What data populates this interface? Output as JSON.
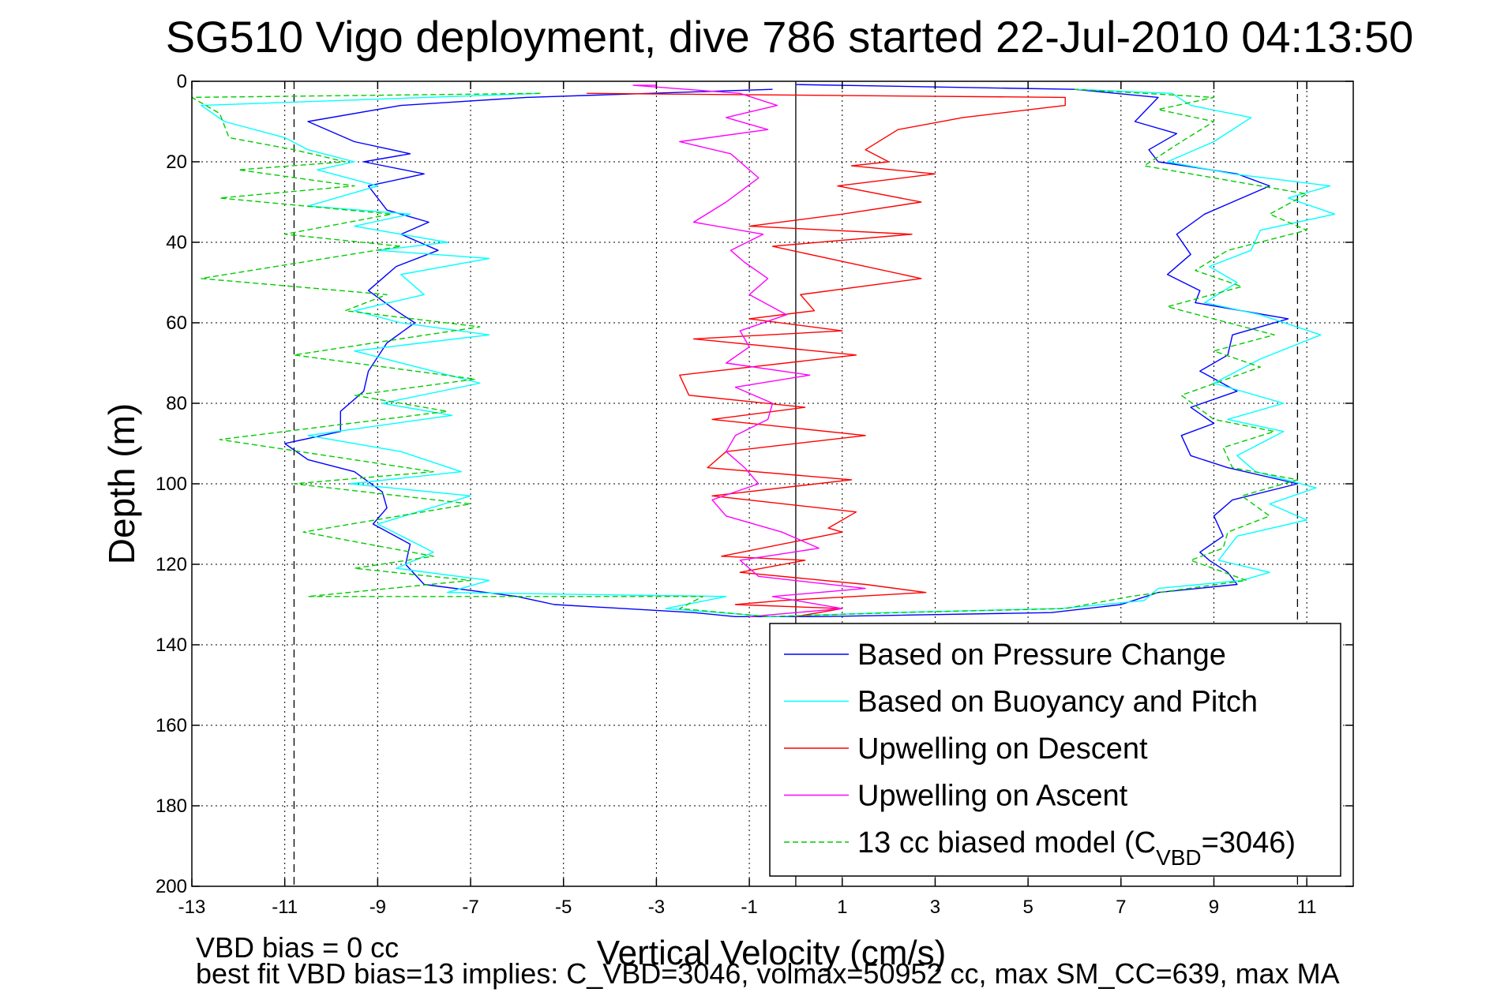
{
  "chart_data": {
    "type": "line",
    "title": "SG510 Vigo deployment, dive 786 started 22-Jul-2010 04:13:50",
    "xlabel": "Vertical Velocity (cm/s)",
    "ylabel": "Depth (m)",
    "xlim": [
      -13,
      12
    ],
    "ylim": [
      0,
      200
    ],
    "y_reversed": true,
    "grid": true,
    "xticks": [
      "-13",
      "-11",
      "-9",
      "-7",
      "-5",
      "-3",
      "-1",
      "1",
      "3",
      "5",
      "7",
      "9",
      "11"
    ],
    "yticks": [
      "0",
      "20",
      "40",
      "60",
      "80",
      "100",
      "120",
      "140",
      "160",
      "180",
      "200"
    ],
    "legend_position": "bottom-right",
    "vlines": [
      {
        "x": -10.8,
        "style": "dashed"
      },
      {
        "x": 10.8,
        "style": "dashed"
      },
      {
        "x": 0,
        "style": "solid"
      }
    ],
    "series": [
      {
        "name": "Based on Pressure Change",
        "color": "#0000ff",
        "style": "solid",
        "points": [
          [
            -0.5,
            2
          ],
          [
            -5.8,
            4
          ],
          [
            -8.5,
            6
          ],
          [
            -10.5,
            10
          ],
          [
            -9.5,
            15
          ],
          [
            -8.3,
            18
          ],
          [
            -9.3,
            20
          ],
          [
            -8.0,
            23
          ],
          [
            -9.2,
            26
          ],
          [
            -8.8,
            32
          ],
          [
            -7.9,
            35
          ],
          [
            -8.5,
            38
          ],
          [
            -7.7,
            42
          ],
          [
            -8.6,
            46
          ],
          [
            -8.8,
            48
          ],
          [
            -9.2,
            52
          ],
          [
            -8.6,
            57
          ],
          [
            -8.2,
            60
          ],
          [
            -8.8,
            65
          ],
          [
            -9.2,
            72
          ],
          [
            -9.3,
            77
          ],
          [
            -9.8,
            82
          ],
          [
            -9.8,
            87
          ],
          [
            -11.0,
            90
          ],
          [
            -10.5,
            94
          ],
          [
            -9.5,
            97
          ],
          [
            -8.9,
            102
          ],
          [
            -8.8,
            106
          ],
          [
            -9.1,
            110
          ],
          [
            -8.3,
            115
          ],
          [
            -8.4,
            120
          ],
          [
            -8.0,
            125
          ],
          [
            -6.0,
            128
          ],
          [
            -5.2,
            130
          ],
          [
            -2.2,
            132
          ],
          [
            -1.3,
            133
          ],
          [
            0.5,
            133
          ],
          [
            5.5,
            132
          ],
          [
            7.0,
            130
          ],
          [
            7.8,
            127
          ],
          [
            9.5,
            125
          ],
          [
            9.3,
            122
          ],
          [
            8.9,
            119
          ],
          [
            8.7,
            117
          ],
          [
            9.2,
            113
          ],
          [
            9.0,
            108
          ],
          [
            9.4,
            104
          ],
          [
            10.8,
            100
          ],
          [
            9.3,
            96
          ],
          [
            8.5,
            93
          ],
          [
            8.3,
            88
          ],
          [
            9.0,
            85
          ],
          [
            8.5,
            81
          ],
          [
            9.5,
            77
          ],
          [
            8.7,
            72
          ],
          [
            9.3,
            68
          ],
          [
            9.4,
            63
          ],
          [
            10.6,
            59
          ],
          [
            8.6,
            55
          ],
          [
            8.7,
            52
          ],
          [
            8.0,
            48
          ],
          [
            8.5,
            43
          ],
          [
            8.2,
            38
          ],
          [
            8.8,
            33
          ],
          [
            9.4,
            30
          ],
          [
            10.2,
            26
          ],
          [
            9.5,
            23
          ],
          [
            7.8,
            20
          ],
          [
            7.6,
            17
          ],
          [
            8.2,
            13
          ],
          [
            7.3,
            10
          ],
          [
            7.8,
            4
          ],
          [
            6.0,
            2
          ],
          [
            0,
            0.8
          ]
        ]
      },
      {
        "name": "Based on Buoyancy and Pitch",
        "color": "#00ffff",
        "style": "solid",
        "points": [
          [
            -5.5,
            3
          ],
          [
            -12.8,
            6
          ],
          [
            -12.3,
            10
          ],
          [
            -11.0,
            14
          ],
          [
            -10.5,
            17
          ],
          [
            -9.5,
            20
          ],
          [
            -10.3,
            22
          ],
          [
            -9.0,
            26
          ],
          [
            -10.5,
            31
          ],
          [
            -8.3,
            33
          ],
          [
            -9.5,
            36
          ],
          [
            -7.5,
            40
          ],
          [
            -9.0,
            42
          ],
          [
            -6.6,
            44
          ],
          [
            -8.5,
            48
          ],
          [
            -8.0,
            53
          ],
          [
            -9.5,
            57
          ],
          [
            -8.5,
            60
          ],
          [
            -6.6,
            63
          ],
          [
            -9.5,
            67
          ],
          [
            -6.8,
            75
          ],
          [
            -8.9,
            80
          ],
          [
            -7.4,
            83
          ],
          [
            -10.5,
            88
          ],
          [
            -8.5,
            92
          ],
          [
            -7.2,
            97
          ],
          [
            -9.6,
            100
          ],
          [
            -7.0,
            103
          ],
          [
            -9.0,
            110
          ],
          [
            -7.8,
            117
          ],
          [
            -8.6,
            121
          ],
          [
            -6.6,
            124
          ],
          [
            -7.5,
            127
          ],
          [
            -1.5,
            128
          ],
          [
            -2.8,
            131
          ],
          [
            -0.5,
            133
          ],
          [
            2.0,
            132
          ],
          [
            5.7,
            131
          ],
          [
            7.5,
            129
          ],
          [
            7.8,
            126
          ],
          [
            9.6,
            124
          ],
          [
            10.2,
            122
          ],
          [
            9.1,
            119
          ],
          [
            9.5,
            113
          ],
          [
            11.0,
            109
          ],
          [
            10.2,
            105
          ],
          [
            11.2,
            101
          ],
          [
            9.9,
            97
          ],
          [
            9.5,
            93
          ],
          [
            10.5,
            87
          ],
          [
            9.3,
            84
          ],
          [
            10.5,
            80
          ],
          [
            9.0,
            75
          ],
          [
            10.0,
            69
          ],
          [
            11.3,
            63
          ],
          [
            10.0,
            58
          ],
          [
            8.8,
            55
          ],
          [
            9.5,
            50
          ],
          [
            8.9,
            46
          ],
          [
            9.8,
            42
          ],
          [
            10.0,
            37
          ],
          [
            11.6,
            33
          ],
          [
            10.6,
            29
          ],
          [
            11.5,
            26
          ],
          [
            9.4,
            23
          ],
          [
            8.0,
            20
          ],
          [
            9.0,
            15
          ],
          [
            9.8,
            9
          ],
          [
            8.5,
            6
          ],
          [
            8.1,
            3
          ],
          [
            6.0,
            2
          ]
        ]
      },
      {
        "name": "Upwelling on Descent",
        "color": "#ff0000",
        "style": "solid",
        "points": [
          [
            -4.5,
            3
          ],
          [
            5.8,
            4
          ],
          [
            5.8,
            6
          ],
          [
            3.6,
            9
          ],
          [
            2.2,
            12
          ],
          [
            1.5,
            17
          ],
          [
            2.0,
            20
          ],
          [
            1.2,
            21
          ],
          [
            3.0,
            23
          ],
          [
            0.9,
            26
          ],
          [
            2.7,
            30
          ],
          [
            1.0,
            33
          ],
          [
            -1.0,
            36
          ],
          [
            2.5,
            38
          ],
          [
            -0.5,
            41
          ],
          [
            2.7,
            49
          ],
          [
            0.1,
            53
          ],
          [
            0.4,
            57
          ],
          [
            -1.0,
            59
          ],
          [
            1.0,
            62
          ],
          [
            -2.2,
            64
          ],
          [
            1.3,
            68
          ],
          [
            -2.5,
            73
          ],
          [
            -2.3,
            78
          ],
          [
            0.2,
            81
          ],
          [
            -1.8,
            84
          ],
          [
            1.5,
            88
          ],
          [
            -1.5,
            92
          ],
          [
            -1.9,
            96
          ],
          [
            1.2,
            99
          ],
          [
            -1.8,
            103
          ],
          [
            1.3,
            107
          ],
          [
            0.7,
            111
          ],
          [
            1.0,
            112
          ],
          [
            -1.6,
            118
          ],
          [
            0.2,
            119
          ],
          [
            -1.2,
            122
          ],
          [
            1.5,
            125
          ],
          [
            2.8,
            127
          ],
          [
            -0.3,
            129
          ],
          [
            -1.3,
            130
          ],
          [
            1.0,
            131
          ],
          [
            0.0,
            133
          ]
        ]
      },
      {
        "name": "Upwelling on Ascent",
        "color": "#ff00ff",
        "style": "solid",
        "points": [
          [
            -1.0,
            133
          ],
          [
            1.0,
            131
          ],
          [
            -0.5,
            128
          ],
          [
            1.5,
            126
          ],
          [
            -0.8,
            123
          ],
          [
            -1.2,
            119
          ],
          [
            0.5,
            116
          ],
          [
            -0.3,
            112
          ],
          [
            -1.5,
            108
          ],
          [
            -1.8,
            104
          ],
          [
            -0.8,
            100
          ],
          [
            -1.1,
            96
          ],
          [
            -1.5,
            92
          ],
          [
            -1.3,
            88
          ],
          [
            -0.6,
            84
          ],
          [
            -0.5,
            80
          ],
          [
            -1.3,
            76
          ],
          [
            0.3,
            73
          ],
          [
            -1.5,
            70
          ],
          [
            -1.0,
            66
          ],
          [
            -1.2,
            62
          ],
          [
            -0.2,
            58
          ],
          [
            -1.0,
            53
          ],
          [
            -0.6,
            49
          ],
          [
            -1.1,
            45
          ],
          [
            -1.4,
            42
          ],
          [
            -0.7,
            38
          ],
          [
            -2.2,
            35
          ],
          [
            -1.5,
            30
          ],
          [
            -0.8,
            24
          ],
          [
            -1.4,
            18
          ],
          [
            -2.5,
            15
          ],
          [
            -0.6,
            12
          ],
          [
            -1.5,
            9
          ],
          [
            -0.4,
            6
          ],
          [
            -1.2,
            3
          ],
          [
            -3.5,
            1
          ],
          [
            -3.0,
            1
          ]
        ]
      },
      {
        "name": "13 cc biased model (C_VBD=3046)",
        "color": "#00cc00",
        "style": "dashed",
        "points": [
          [
            -5.5,
            3
          ],
          [
            -13.0,
            4
          ],
          [
            -12.4,
            8
          ],
          [
            -12.2,
            14
          ],
          [
            -10.8,
            17
          ],
          [
            -9.7,
            20
          ],
          [
            -12.0,
            22
          ],
          [
            -9.5,
            26
          ],
          [
            -12.4,
            29
          ],
          [
            -8.7,
            33
          ],
          [
            -11.0,
            38
          ],
          [
            -8.5,
            41
          ],
          [
            -12.8,
            49
          ],
          [
            -8.8,
            53
          ],
          [
            -9.7,
            57
          ],
          [
            -6.8,
            61
          ],
          [
            -10.8,
            68
          ],
          [
            -6.9,
            74
          ],
          [
            -9.5,
            78
          ],
          [
            -7.5,
            82
          ],
          [
            -12.4,
            89
          ],
          [
            -7.8,
            97
          ],
          [
            -10.8,
            100
          ],
          [
            -7.0,
            105
          ],
          [
            -10.6,
            112
          ],
          [
            -7.8,
            118
          ],
          [
            -9.5,
            121
          ],
          [
            -7.0,
            124
          ],
          [
            -10.5,
            128
          ],
          [
            -2.0,
            128
          ],
          [
            -2.5,
            131
          ],
          [
            -0.6,
            133
          ],
          [
            2.2,
            132
          ],
          [
            5.8,
            131
          ],
          [
            7.2,
            128
          ],
          [
            9.7,
            124
          ],
          [
            8.5,
            119
          ],
          [
            9.2,
            116
          ],
          [
            9.3,
            112
          ],
          [
            10.2,
            108
          ],
          [
            9.6,
            103
          ],
          [
            10.8,
            99
          ],
          [
            9.4,
            96
          ],
          [
            9.2,
            91
          ],
          [
            10.3,
            87
          ],
          [
            9.0,
            84
          ],
          [
            8.3,
            78
          ],
          [
            10.0,
            71
          ],
          [
            9.0,
            67
          ],
          [
            10.3,
            63
          ],
          [
            8.0,
            56
          ],
          [
            9.6,
            51
          ],
          [
            8.6,
            47
          ],
          [
            9.3,
            42
          ],
          [
            11.0,
            37
          ],
          [
            10.2,
            33
          ],
          [
            11.0,
            28
          ],
          [
            10.0,
            26
          ],
          [
            7.5,
            21
          ],
          [
            8.3,
            15
          ],
          [
            9.0,
            10
          ],
          [
            7.8,
            7
          ],
          [
            9.0,
            4
          ],
          [
            6.0,
            2
          ]
        ]
      }
    ],
    "annotations": [
      "VBD bias = 0 cc",
      "best fit VBD bias=13 implies: C_VBD=3046, volmax=50952 cc, max SM_CC=639, max MA"
    ]
  }
}
